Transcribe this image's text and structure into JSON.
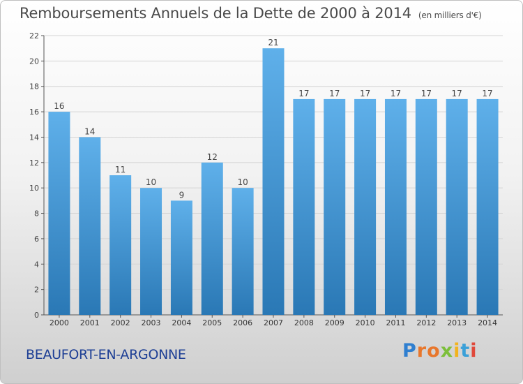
{
  "title": "Remboursements Annuels de la Dette de 2000 à 2014",
  "title_unit": "(en milliers d'€)",
  "place": "BEAUFORT-EN-ARGONNE",
  "logo": "Proxiti",
  "colors": {
    "bar_top": "#5fb0ea",
    "bar_bottom": "#2a78b5",
    "title": "#4a4a4a",
    "place": "#1e3f95"
  },
  "chart_data": {
    "type": "bar",
    "title": "Remboursements Annuels de la Dette de 2000 à 2014",
    "subtitle": "(en milliers d'€)",
    "xlabel": "",
    "ylabel": "",
    "categories": [
      "2000",
      "2001",
      "2002",
      "2003",
      "2004",
      "2005",
      "2006",
      "2007",
      "2008",
      "2009",
      "2010",
      "2011",
      "2012",
      "2013",
      "2014"
    ],
    "values": [
      16,
      14,
      11,
      10,
      9,
      12,
      10,
      21,
      17,
      17,
      17,
      17,
      17,
      17,
      17
    ],
    "ylim": [
      0,
      22
    ],
    "yticks": [
      0,
      2,
      4,
      6,
      8,
      10,
      12,
      14,
      16,
      18,
      20,
      22
    ],
    "grid": true,
    "data_labels": true
  }
}
